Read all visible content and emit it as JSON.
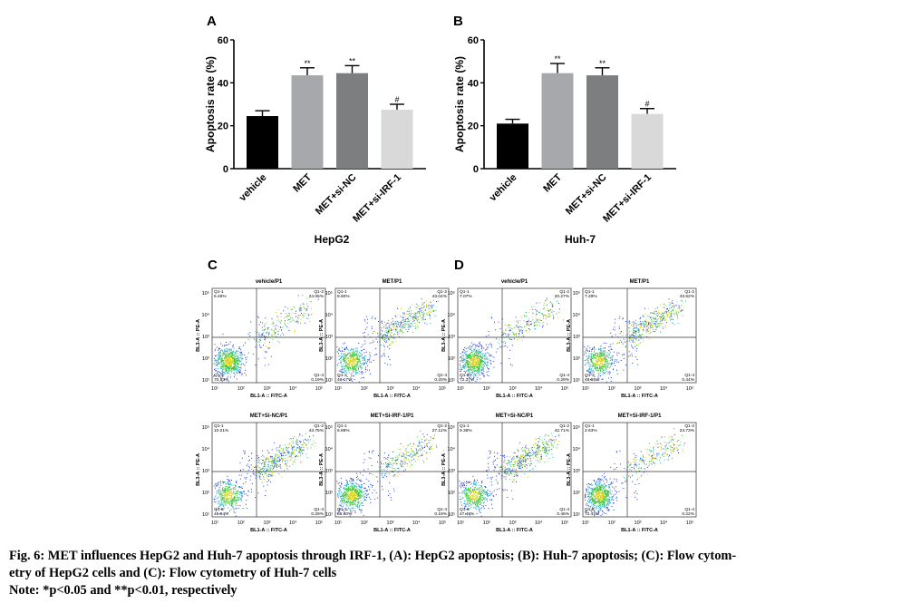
{
  "chart_data": [
    {
      "panel": "A",
      "type": "bar",
      "title": "HepG2",
      "xlabel": "",
      "ylabel": "Apoptosis rate (%)",
      "ylim": [
        0,
        60
      ],
      "yticks": [
        "0",
        "20",
        "40",
        "60"
      ],
      "categories": [
        "vehicle",
        "MET",
        "MET+si-NC",
        "MET+si-IRF-1"
      ],
      "values": [
        24.5,
        43.5,
        44.5,
        27.5
      ],
      "errors": [
        2.5,
        3.5,
        3.5,
        2.5
      ],
      "significance": [
        "",
        "**",
        "**",
        "#"
      ],
      "colors": [
        "#000000",
        "#a6a8ab",
        "#7d7e80",
        "#d9d9d9"
      ]
    },
    {
      "panel": "B",
      "type": "bar",
      "title": "Huh-7",
      "xlabel": "",
      "ylabel": "Apoptosis rate (%)",
      "ylim": [
        0,
        60
      ],
      "yticks": [
        "0",
        "20",
        "40",
        "60"
      ],
      "categories": [
        "vehicle",
        "MET",
        "MET+si-NC",
        "MET+si-IRF-1"
      ],
      "values": [
        21,
        44.5,
        43.5,
        25.5
      ],
      "errors": [
        2,
        4.5,
        3.5,
        2.5
      ],
      "significance": [
        "",
        "**",
        "**",
        "#"
      ],
      "colors": [
        "#000000",
        "#a6a8ab",
        "#7d7e80",
        "#d9d9d9"
      ]
    },
    {
      "panel": "C",
      "type": "scatter",
      "plots": [
        {
          "title": "vehicle/P1",
          "q1": "Q1-1",
          "q2": "Q1-2",
          "q3": "Q1-3",
          "q4": "Q1-4",
          "q1_pct": "6.48%",
          "q2_pct": "24.06%",
          "q3_pct": "70.53%",
          "q4_pct": "0.19%"
        },
        {
          "title": "MET/P1",
          "q1": "Q1-1",
          "q2": "Q1-2",
          "q3": "Q1-3",
          "q4": "Q1-4",
          "q1_pct": "8.60%",
          "q2_pct": "43.04%",
          "q3_pct": "48.17%",
          "q4_pct": "0.20%"
        },
        {
          "title": "MET+Si-NC/P1",
          "q1": "Q1-1",
          "q2": "Q1-2",
          "q3": "Q1-3",
          "q4": "Q1-4",
          "q1_pct": "10.01%",
          "q2_pct": "43.75%",
          "q3_pct": "45.94%",
          "q4_pct": "0.29%"
        },
        {
          "title": "MET+Si-IRF-1/P1",
          "q1": "Q1-1",
          "q2": "Q1-2",
          "q3": "Q1-3",
          "q4": "Q1-4",
          "q1_pct": "6.89%",
          "q2_pct": "27.12%",
          "q3_pct": "65.80%",
          "q4_pct": "0.19%"
        }
      ],
      "xlabel": "BL1-A :: FITC-A",
      "ylabel": "BL3-A :: PE-A",
      "ticks": [
        "10¹",
        "10²",
        "10³",
        "10⁴",
        "10⁵"
      ]
    },
    {
      "panel": "D",
      "type": "scatter",
      "plots": [
        {
          "title": "vehicle/P1",
          "q1": "Q1-1",
          "q2": "Q1-2",
          "q3": "Q1-3",
          "q4": "Q1-4",
          "q1_pct": "7.07%",
          "q2_pct": "20.27%",
          "q3_pct": "72.37%",
          "q4_pct": "0.29%"
        },
        {
          "title": "MET/P1",
          "q1": "Q1-1",
          "q2": "Q1-2",
          "q3": "Q1-3",
          "q4": "Q1-4",
          "q1_pct": "7.29%",
          "q2_pct": "43.62%",
          "q3_pct": "48.65%",
          "q4_pct": "0.44%"
        },
        {
          "title": "MET+Si-NC/P1",
          "q1": "Q1-1",
          "q2": "Q1-2",
          "q3": "Q1-3",
          "q4": "Q1-4",
          "q1_pct": "9.38%",
          "q2_pct": "42.71%",
          "q3_pct": "47.48%",
          "q4_pct": "0.46%"
        },
        {
          "title": "MET+Si-IRF-1/P1",
          "q1": "Q1-1",
          "q2": "Q1-2",
          "q3": "Q1-3",
          "q4": "Q1-4",
          "q1_pct": "2.63%",
          "q2_pct": "24.73%",
          "q3_pct": "72.42%",
          "q4_pct": "0.22%"
        }
      ],
      "xlabel": "BL1-A :: FITC-A",
      "ylabel": "BL3-A :: PE-A",
      "ticks": [
        "10¹",
        "10²",
        "10³",
        "10⁴",
        "10⁵"
      ]
    }
  ],
  "caption": {
    "line1": "Fig. 6: MET influences HepG2 and Huh-7 apoptosis through IRF-1, (A): HepG2 apoptosis; (B): Huh-7 apoptosis; (C): Flow cytom-",
    "line2": "etry of HepG2 cells and (C): Flow cytometry of Huh-7 cells",
    "line3": "Note: *p<0.05 and **p<0.01, respectively"
  }
}
